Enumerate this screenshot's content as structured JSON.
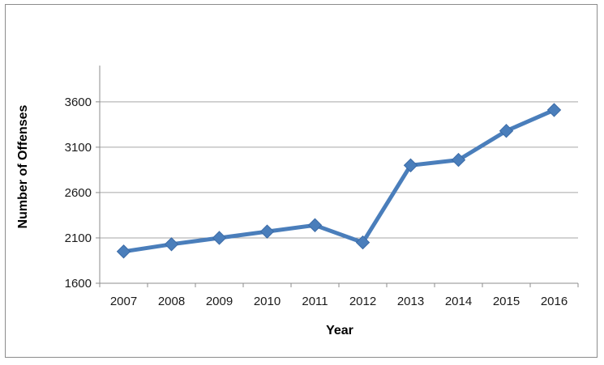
{
  "chart_data": {
    "type": "line",
    "title": "",
    "xlabel": "Year",
    "ylabel": "Number of Offenses",
    "x": [
      "2007",
      "2008",
      "2009",
      "2010",
      "2011",
      "2012",
      "2013",
      "2014",
      "2015",
      "2016"
    ],
    "series": [
      {
        "values": [
          1950,
          2030,
          2100,
          2170,
          2240,
          2050,
          2900,
          2960,
          3280,
          3510
        ]
      }
    ],
    "ylim": [
      1600,
      4000
    ],
    "yticks": [
      "1600",
      "2100",
      "2600",
      "3100",
      "3600"
    ],
    "grid": true,
    "legend": "none",
    "colors": {
      "series": "#4a7ebb",
      "grid": "#a6a6a6",
      "axis": "#8c8c8c"
    }
  }
}
